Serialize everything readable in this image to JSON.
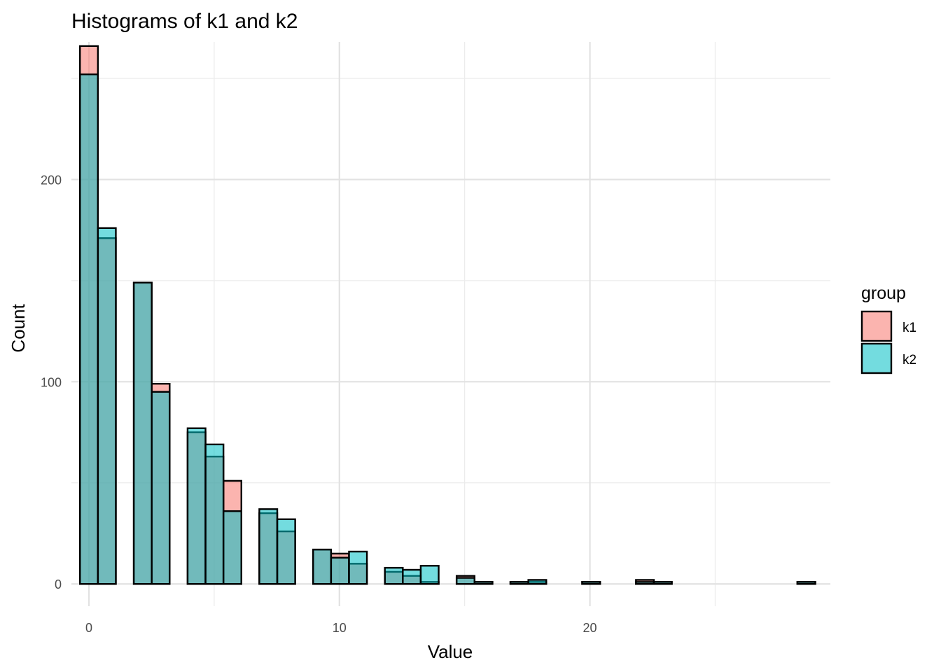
{
  "chart_data": {
    "type": "bar",
    "title": "Histograms of k1 and k2",
    "xlabel": "Value",
    "ylabel": "Count",
    "xlim": [
      -0.7,
      29.6
    ],
    "ylim": [
      -11,
      268
    ],
    "x_major_ticks": [
      0,
      10,
      20
    ],
    "x_minor_ticks": [
      5,
      15,
      25
    ],
    "y_major_ticks": [
      0,
      100,
      200
    ],
    "y_minor_ticks": [
      50,
      150,
      250
    ],
    "grid": true,
    "legend": {
      "title": "group",
      "position": "right"
    },
    "bin_width": 0.716,
    "x": [
      0,
      0.716,
      2.148,
      2.864,
      4.296,
      5.012,
      5.728,
      7.16,
      7.876,
      9.308,
      10.024,
      10.74,
      12.172,
      12.888,
      13.604,
      15.036,
      15.752,
      17.184,
      17.9,
      20.048,
      22.196,
      22.912,
      28.64
    ],
    "series": [
      {
        "name": "k1",
        "color": "#F8766D",
        "values": [
          266,
          171,
          149,
          99,
          75,
          63,
          51,
          35,
          26,
          17,
          15,
          10,
          6,
          4,
          1,
          4,
          1,
          1,
          1,
          1,
          2,
          1,
          1
        ]
      },
      {
        "name": "k2",
        "color": "#00BFC4",
        "values": [
          252,
          176,
          149,
          95,
          77,
          69,
          36,
          37,
          32,
          17,
          13,
          16,
          8,
          7,
          9,
          3,
          1,
          1,
          2,
          1,
          1,
          1,
          1
        ]
      }
    ],
    "edge_color": "#000000",
    "fill_alpha": 0.55
  }
}
